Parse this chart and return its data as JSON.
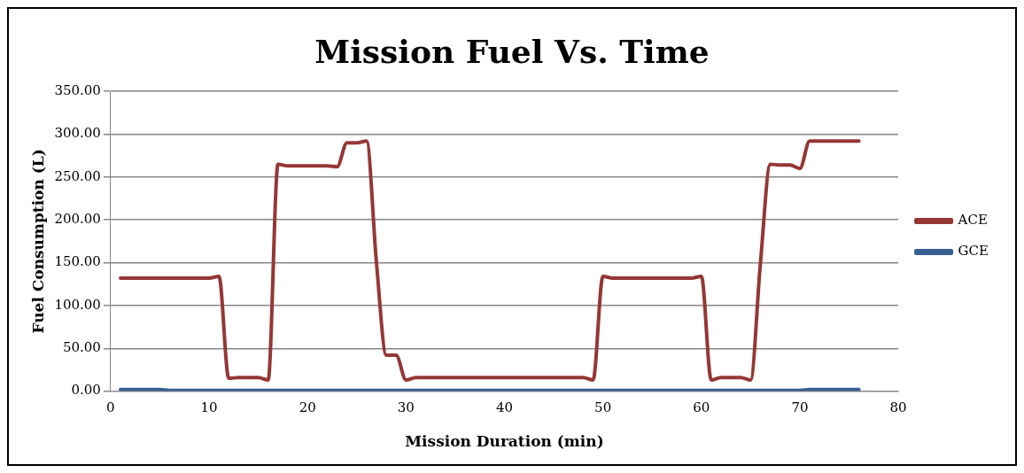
{
  "chart_data": {
    "type": "line",
    "title": "Mission Fuel Vs. Time",
    "xlabel": "Mission Duration (min)",
    "ylabel": "Fuel Consumption (L)",
    "xlim": [
      0,
      80
    ],
    "xticks": [
      0,
      10,
      20,
      30,
      40,
      50,
      60,
      70,
      80
    ],
    "ylim": [
      0,
      350
    ],
    "yticks": [
      {
        "value": 0,
        "label": "0.00"
      },
      {
        "value": 50,
        "label": "50.00"
      },
      {
        "value": 100,
        "label": "100.00"
      },
      {
        "value": 150,
        "label": "150.00"
      },
      {
        "value": 200,
        "label": "200.00"
      },
      {
        "value": 250,
        "label": "250.00"
      },
      {
        "value": 300,
        "label": "300.00"
      },
      {
        "value": 350,
        "label": "350.00"
      }
    ],
    "grid": "y",
    "legend": "right",
    "marker": "none",
    "series": [
      {
        "name": "ACE",
        "color": "#953735",
        "x": [
          1,
          5,
          10,
          11,
          12,
          13,
          15,
          16,
          17,
          18,
          22,
          23,
          24,
          25,
          26,
          27,
          28,
          29,
          30,
          31,
          40,
          48,
          49,
          50,
          51,
          59,
          60,
          61,
          62,
          64,
          65,
          66,
          67,
          68,
          69,
          70,
          71,
          72,
          76
        ],
        "values": [
          132,
          132,
          132,
          134,
          15,
          16,
          16,
          13,
          265,
          263,
          263,
          262,
          290,
          290,
          292,
          150,
          42,
          42,
          13,
          16,
          16,
          16,
          13,
          134,
          132,
          132,
          134,
          13,
          16,
          16,
          13,
          150,
          265,
          264,
          264,
          260,
          292,
          292,
          292
        ]
      },
      {
        "name": "GCE",
        "color": "#376092",
        "x": [
          1,
          5,
          6,
          10,
          20,
          30,
          40,
          50,
          60,
          70,
          71,
          72,
          76
        ],
        "values": [
          2,
          2,
          1,
          1,
          1,
          1,
          1,
          1,
          1,
          1,
          2,
          2,
          2
        ]
      }
    ]
  }
}
